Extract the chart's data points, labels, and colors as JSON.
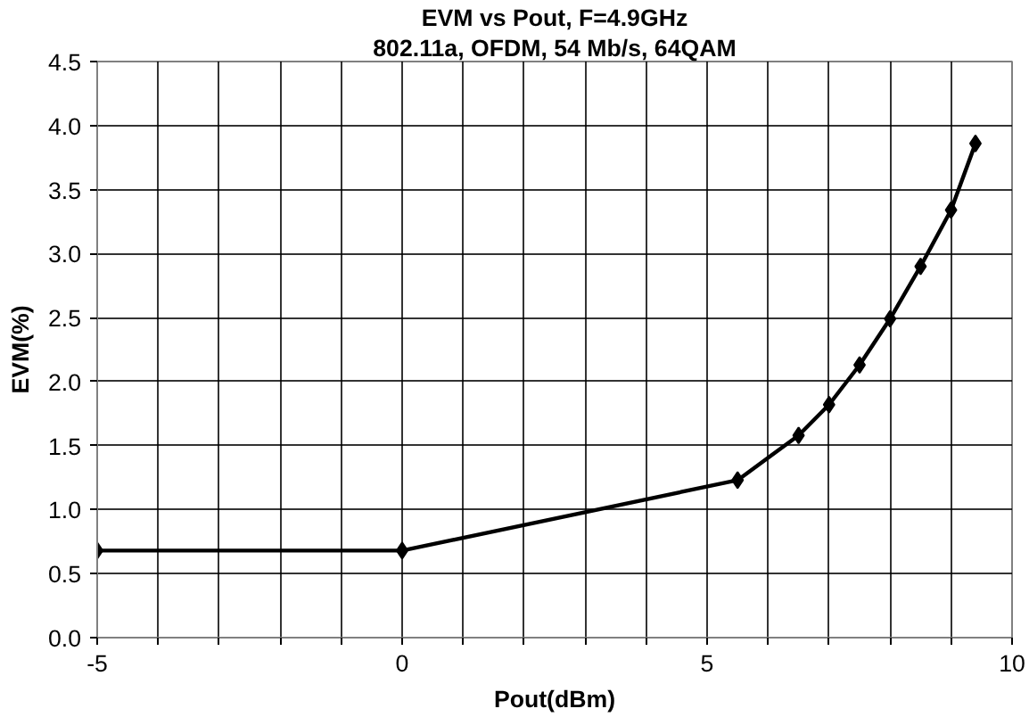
{
  "chart_data": {
    "type": "line",
    "title": "EVM vs Pout, F=4.9GHz",
    "subtitle": "802.11a, OFDM, 54 Mb/s, 64QAM",
    "xlabel": "Pout(dBm)",
    "ylabel": "EVM(%)",
    "x": [
      -5,
      0,
      5.5,
      6.5,
      7,
      7.5,
      8,
      8.5,
      9,
      9.4
    ],
    "series": [
      {
        "color": "#000000",
        "values": [
          0.68,
          0.68,
          1.23,
          1.58,
          1.82,
          2.13,
          2.49,
          2.9,
          3.34,
          3.86
        ]
      }
    ],
    "xlim": [
      -5,
      10
    ],
    "ylim": [
      0,
      4.5
    ],
    "xticks": [
      -5,
      {
        "value": -4,
        "label": null
      },
      {
        "value": -3,
        "label": null
      },
      {
        "value": -2,
        "label": null
      },
      {
        "value": -1,
        "label": null
      },
      0,
      {
        "value": 1,
        "label": null
      },
      {
        "value": 2,
        "label": null
      },
      {
        "value": 3,
        "label": null
      },
      {
        "value": 4,
        "label": null
      },
      5,
      {
        "value": 6,
        "label": null
      },
      {
        "value": 7,
        "label": null
      },
      {
        "value": 8,
        "label": null
      },
      {
        "value": 9,
        "label": null
      },
      10
    ],
    "yticks": [
      {
        "value": 0,
        "label": "0.0"
      },
      0.5,
      {
        "value": 1,
        "label": "1.0"
      },
      1.5,
      {
        "value": 2,
        "label": "2.0"
      },
      2.5,
      {
        "value": 3,
        "label": "3.0"
      },
      3.5,
      {
        "value": 4,
        "label": "4.0"
      },
      4.5
    ],
    "grid": true,
    "marker": "diamond",
    "line_style": "solid"
  }
}
